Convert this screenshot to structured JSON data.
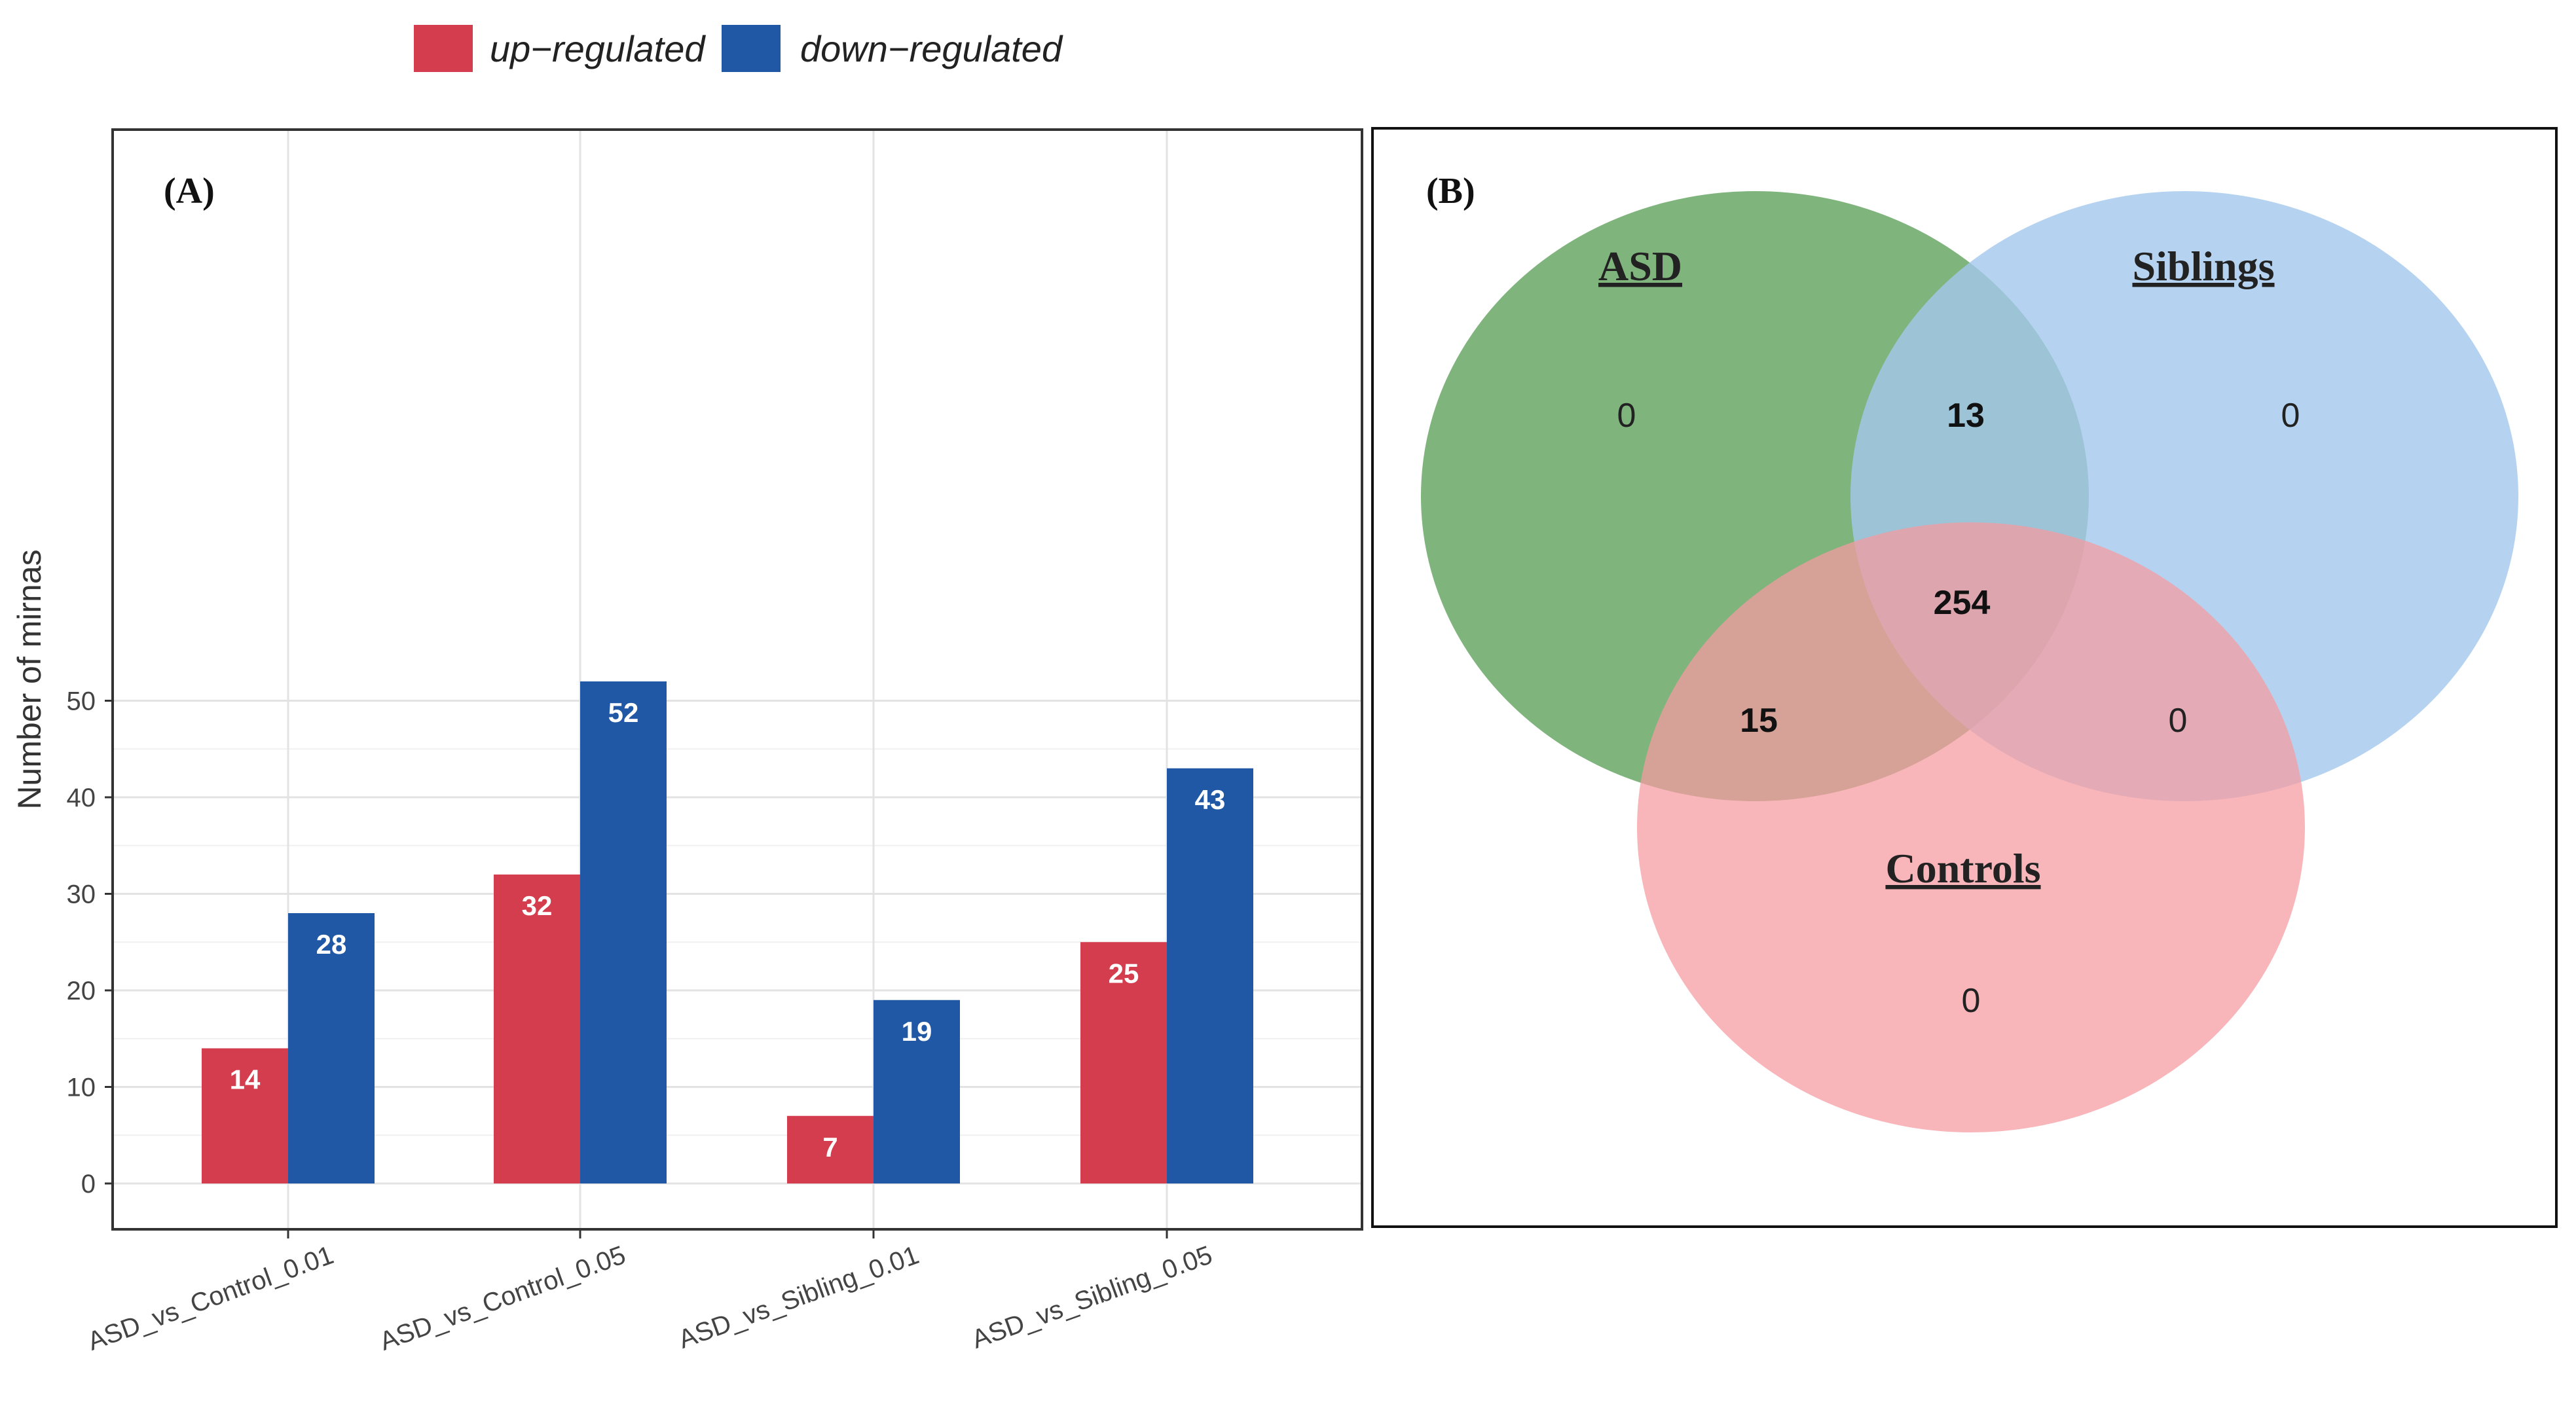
{
  "legend": {
    "items": [
      {
        "label": "up−regulated",
        "color": "#D43D4E"
      },
      {
        "label": "down−regulated",
        "color": "#2158A5"
      }
    ]
  },
  "chart_data": [
    {
      "type": "bar",
      "panel_label": "(A)",
      "title": "",
      "xlabel": "",
      "ylabel": "Number of mirnas",
      "ylim": [
        0,
        54
      ],
      "yticks": [
        0,
        10,
        20,
        30,
        40,
        50
      ],
      "grid": true,
      "legend_position": "top",
      "categories": [
        "ASD_vs_Control_0.01",
        "ASD_vs_Control_0.05",
        "ASD_vs_Sibling_0.01",
        "ASD_vs_Sibling_0.05"
      ],
      "series": [
        {
          "name": "up−regulated",
          "color": "#D43D4E",
          "values": [
            14,
            32,
            7,
            25
          ]
        },
        {
          "name": "down−regulated",
          "color": "#2158A5",
          "values": [
            28,
            52,
            19,
            43
          ]
        }
      ]
    }
  ],
  "venn": {
    "panel_label": "(B)",
    "sets": [
      {
        "label": "ASD",
        "color": "#6AA766"
      },
      {
        "label": "Siblings",
        "color": "#A2C8EC"
      },
      {
        "label": "Controls",
        "color": "#F69AA0"
      }
    ],
    "regions": {
      "asd_only": "0",
      "siblings_only": "0",
      "controls_only": "0",
      "asd_siblings": "13",
      "asd_controls": "15",
      "siblings_controls": "0",
      "all_three": "254"
    }
  }
}
